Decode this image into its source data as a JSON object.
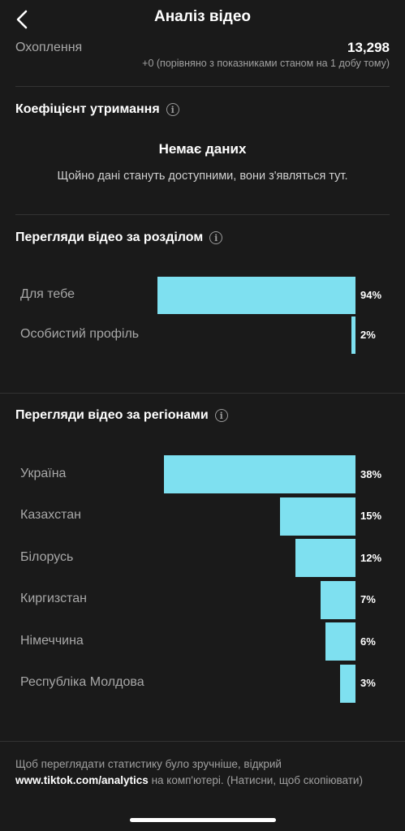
{
  "header": {
    "title": "Аналіз відео"
  },
  "reach": {
    "label": "Охоплення",
    "value": "13,298",
    "compare": "+0 (порівняно з показниками станом на 1 добу тому)"
  },
  "retention": {
    "title": "Коефіцієнт утримання",
    "nodata_title": "Немає даних",
    "nodata_text": "Щойно дані стануть доступними, вони з'являться тут."
  },
  "sections": {
    "title": "Перегляди відео за розділом",
    "rows": [
      {
        "label": "Для тебе",
        "percent": 94,
        "pct_label": "94%"
      },
      {
        "label": "Особистий профіль",
        "percent": 2,
        "pct_label": "2%"
      }
    ]
  },
  "regions": {
    "title": "Перегляди відео за регіонами",
    "rows": [
      {
        "label": "Україна",
        "percent": 38,
        "pct_label": "38%"
      },
      {
        "label": "Казахстан",
        "percent": 15,
        "pct_label": "15%"
      },
      {
        "label": "Білорусь",
        "percent": 12,
        "pct_label": "12%"
      },
      {
        "label": "Киргизстан",
        "percent": 7,
        "pct_label": "7%"
      },
      {
        "label": "Німеччина",
        "percent": 6,
        "pct_label": "6%"
      },
      {
        "label": "Республіка Молдова",
        "percent": 3,
        "pct_label": "3%"
      }
    ]
  },
  "footer": {
    "text_before": "Щоб переглядати статистику було зручніше, відкрий ",
    "link": "www.tiktok.com/analytics",
    "text_after": " на комп'ютері. (Натисни, щоб скопіювати)"
  },
  "colors": {
    "bar": "#7ee0f0",
    "background": "#1a1a1a"
  }
}
